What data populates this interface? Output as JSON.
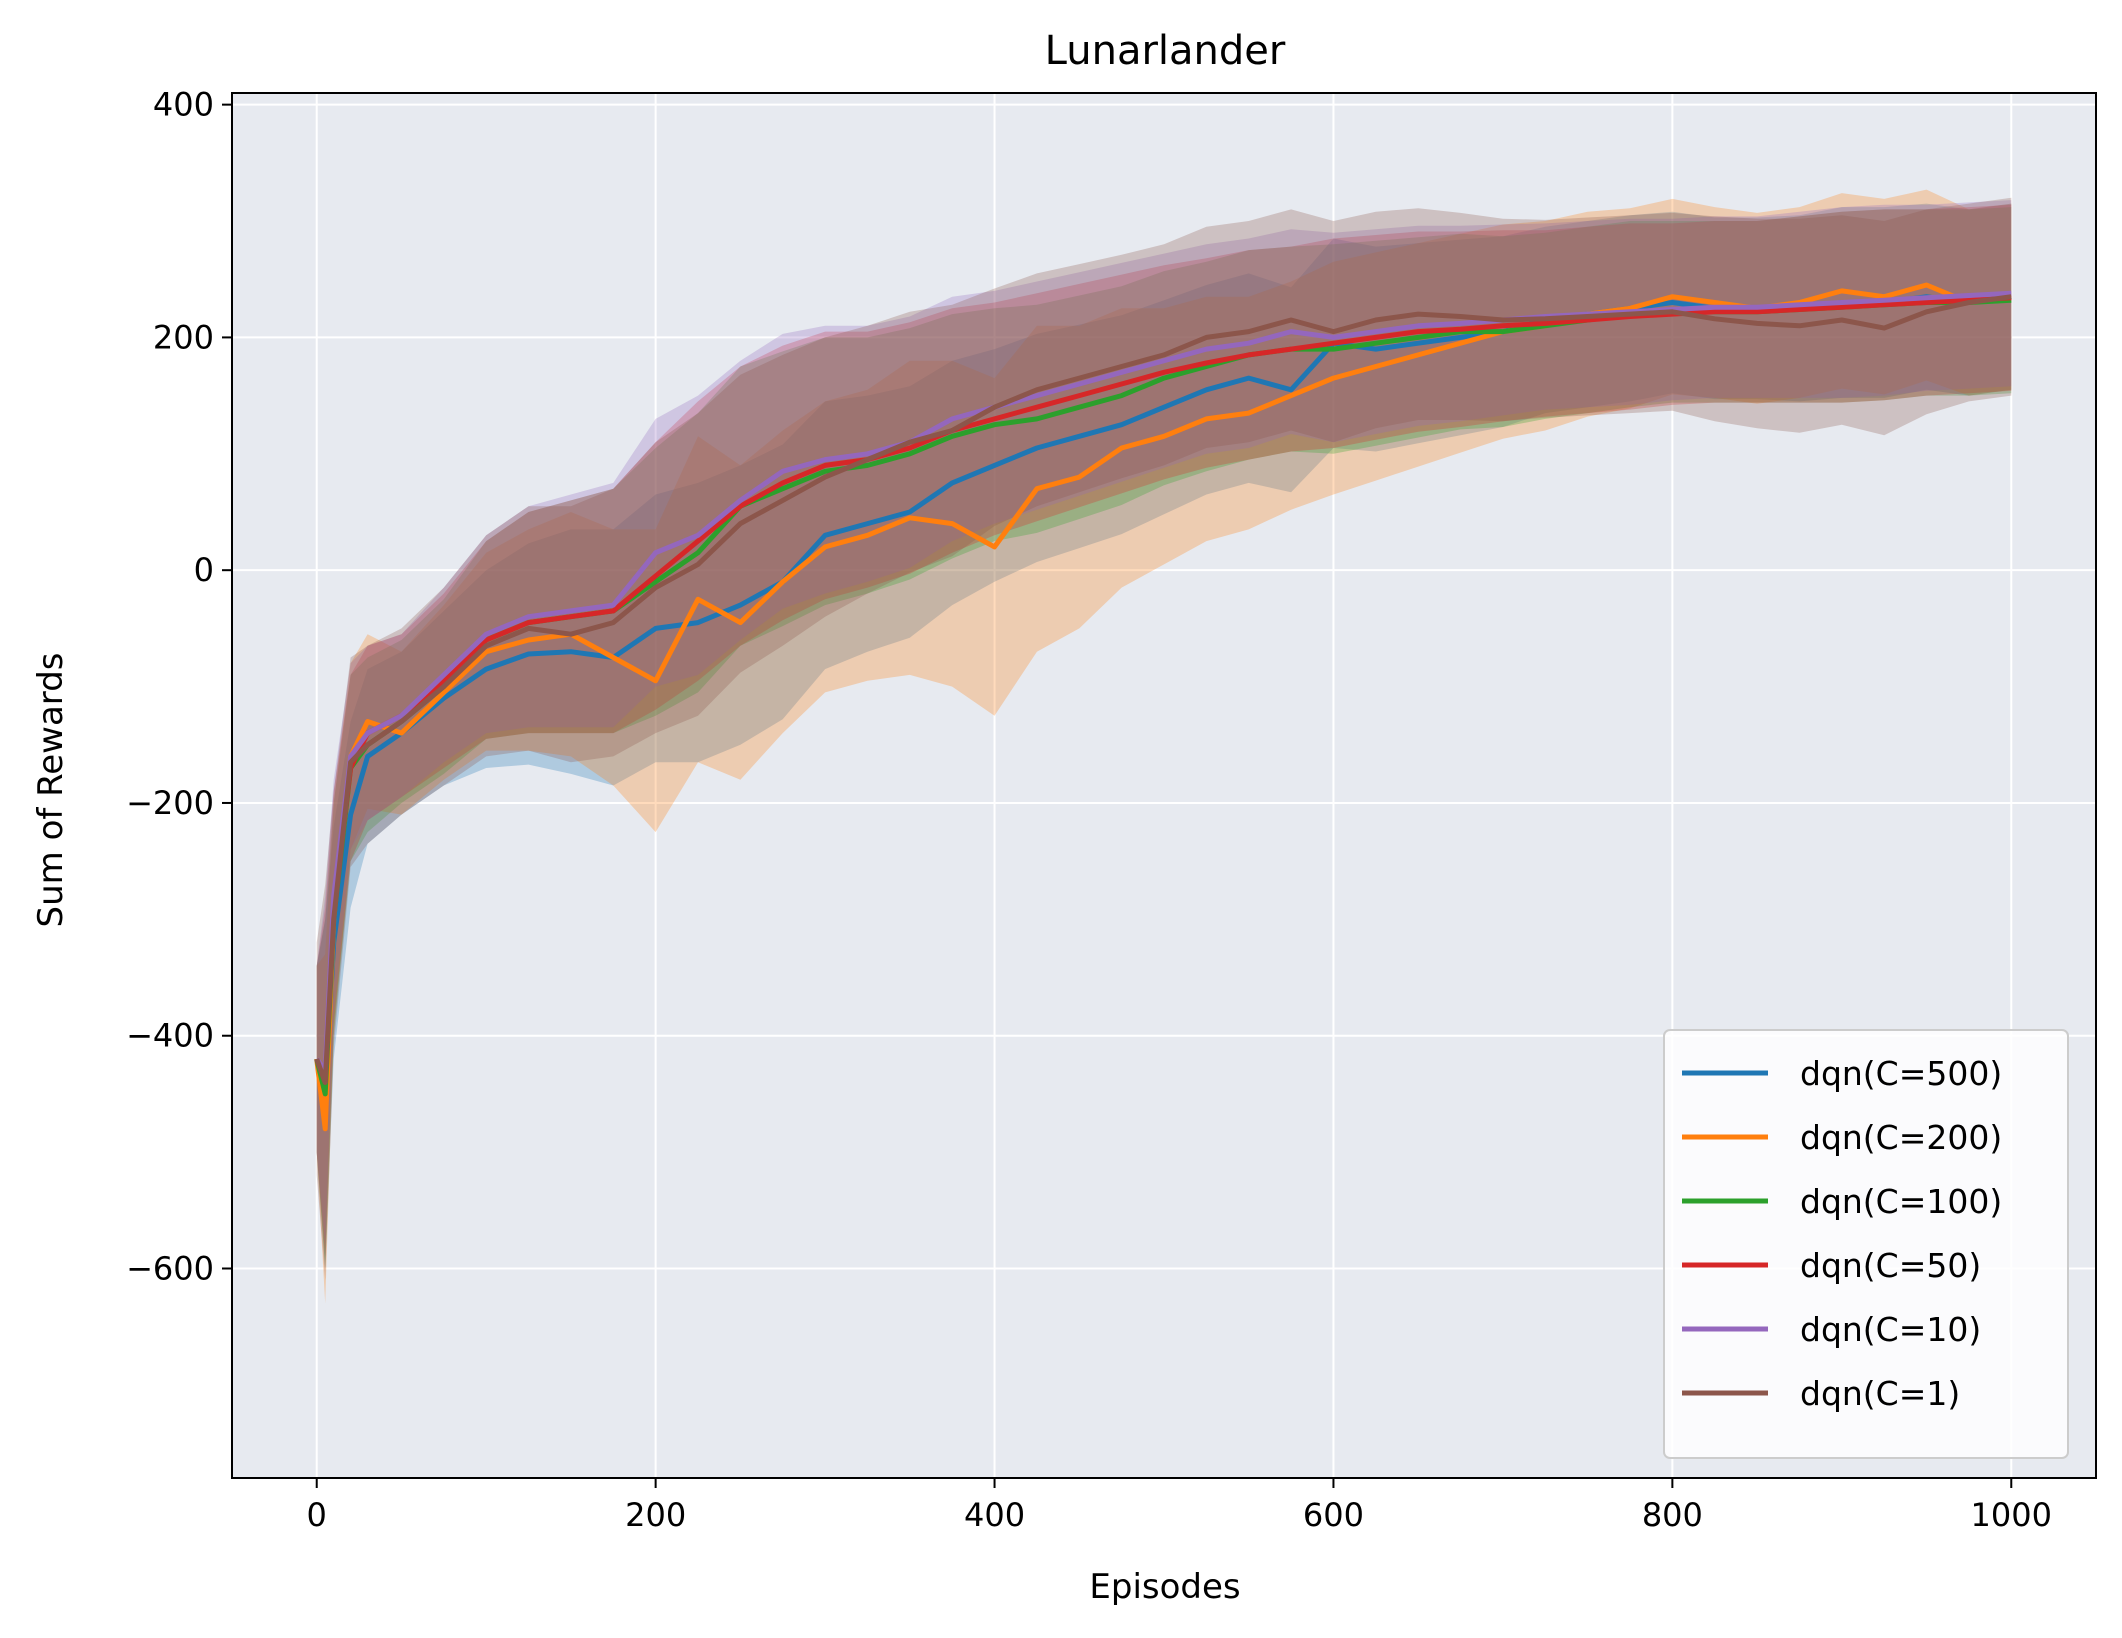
{
  "chart_data": {
    "type": "line",
    "title": "Lunarlander",
    "xlabel": "Episodes",
    "ylabel": "Sum of Rewards",
    "xlim": [
      -50,
      1050
    ],
    "ylim": [
      -780,
      410
    ],
    "xticks": [
      0,
      200,
      400,
      600,
      800,
      1000
    ],
    "yticks": [
      -600,
      -400,
      -200,
      0,
      200,
      400
    ],
    "xtick_labels": [
      "0",
      "200",
      "400",
      "600",
      "800",
      "1000"
    ],
    "ytick_labels": [
      "−600",
      "−400",
      "−200",
      "0",
      "200",
      "400"
    ],
    "grid": true,
    "background": "#e7eaf0",
    "legend_position": "lower-right",
    "shaded_band": "mean ± spread per series (alpha fill)",
    "x": [
      0,
      5,
      10,
      20,
      30,
      50,
      75,
      100,
      125,
      150,
      175,
      200,
      225,
      250,
      275,
      300,
      325,
      350,
      375,
      400,
      425,
      450,
      475,
      500,
      525,
      550,
      575,
      600,
      625,
      650,
      675,
      700,
      725,
      750,
      775,
      800,
      825,
      850,
      875,
      900,
      925,
      950,
      975,
      1000
    ],
    "series": [
      {
        "name": "dqn(C=500)",
        "color": "#1f77b4",
        "values": [
          -420,
          -450,
          -320,
          -210,
          -160,
          -140,
          -110,
          -85,
          -72,
          -70,
          -75,
          -50,
          -45,
          -30,
          -10,
          30,
          40,
          50,
          75,
          90,
          105,
          115,
          125,
          140,
          155,
          165,
          155,
          195,
          190,
          195,
          200,
          205,
          215,
          220,
          225,
          230,
          225,
          225,
          225,
          230,
          230,
          235,
          230,
          235
        ],
        "spread": [
          80,
          150,
          100,
          80,
          75,
          70,
          75,
          85,
          95,
          105,
          110,
          115,
          120,
          120,
          118,
          115,
          110,
          108,
          105,
          100,
          98,
          96,
          94,
          92,
          90,
          90,
          88,
          90,
          88,
          86,
          84,
          82,
          80,
          80,
          80,
          78,
          78,
          78,
          80,
          82,
          82,
          80,
          80,
          80
        ]
      },
      {
        "name": "dqn(C=200)",
        "color": "#ff7f0e",
        "values": [
          -420,
          -480,
          -300,
          -160,
          -130,
          -140,
          -105,
          -70,
          -60,
          -55,
          -75,
          -95,
          -25,
          -45,
          -10,
          20,
          30,
          45,
          40,
          20,
          70,
          80,
          105,
          115,
          130,
          135,
          150,
          165,
          175,
          185,
          195,
          205,
          210,
          220,
          225,
          235,
          230,
          225,
          230,
          240,
          235,
          245,
          230,
          235
        ],
        "spread": [
          80,
          150,
          100,
          80,
          75,
          70,
          75,
          85,
          95,
          105,
          110,
          130,
          140,
          135,
          130,
          125,
          125,
          135,
          140,
          145,
          140,
          130,
          120,
          110,
          105,
          100,
          98,
          100,
          98,
          96,
          94,
          92,
          90,
          88,
          86,
          84,
          82,
          82,
          82,
          84,
          84,
          82,
          80,
          80
        ]
      },
      {
        "name": "dqn(C=100)",
        "color": "#2ca02c",
        "values": [
          -420,
          -450,
          -300,
          -170,
          -150,
          -130,
          -100,
          -60,
          -45,
          -40,
          -35,
          -10,
          15,
          55,
          70,
          85,
          90,
          100,
          115,
          125,
          130,
          140,
          150,
          165,
          175,
          185,
          190,
          190,
          195,
          200,
          205,
          205,
          210,
          215,
          220,
          222,
          222,
          222,
          224,
          226,
          228,
          230,
          230,
          232
        ],
        "spread": [
          80,
          150,
          100,
          80,
          75,
          70,
          75,
          85,
          95,
          100,
          105,
          115,
          120,
          120,
          118,
          115,
          110,
          108,
          105,
          100,
          98,
          96,
          94,
          92,
          90,
          90,
          88,
          90,
          88,
          86,
          84,
          82,
          80,
          80,
          80,
          78,
          78,
          78,
          80,
          82,
          82,
          80,
          80,
          80
        ]
      },
      {
        "name": "dqn(C=50)",
        "color": "#d62728",
        "values": [
          -420,
          -440,
          -290,
          -170,
          -140,
          -125,
          -95,
          -60,
          -45,
          -40,
          -35,
          -5,
          25,
          55,
          75,
          90,
          95,
          105,
          120,
          130,
          140,
          150,
          160,
          170,
          178,
          185,
          190,
          195,
          200,
          205,
          207,
          210,
          212,
          215,
          218,
          220,
          222,
          222,
          224,
          226,
          228,
          230,
          232,
          234
        ],
        "spread": [
          80,
          150,
          100,
          80,
          75,
          70,
          75,
          85,
          95,
          100,
          105,
          115,
          120,
          120,
          118,
          115,
          110,
          108,
          105,
          100,
          98,
          96,
          94,
          92,
          90,
          90,
          88,
          90,
          88,
          86,
          84,
          82,
          80,
          80,
          80,
          78,
          78,
          78,
          80,
          82,
          82,
          80,
          80,
          80
        ]
      },
      {
        "name": "dqn(C=10)",
        "color": "#9467bd",
        "values": [
          -420,
          -430,
          -280,
          -160,
          -140,
          -125,
          -90,
          -55,
          -40,
          -35,
          -30,
          15,
          30,
          60,
          85,
          95,
          100,
          110,
          130,
          140,
          150,
          160,
          170,
          180,
          190,
          195,
          205,
          200,
          205,
          210,
          212,
          215,
          218,
          220,
          222,
          224,
          226,
          226,
          228,
          230,
          232,
          234,
          236,
          238
        ],
        "spread": [
          80,
          150,
          100,
          80,
          75,
          70,
          75,
          85,
          95,
          100,
          105,
          115,
          120,
          120,
          118,
          115,
          110,
          108,
          105,
          100,
          98,
          96,
          94,
          92,
          90,
          90,
          88,
          90,
          88,
          86,
          84,
          82,
          80,
          80,
          80,
          78,
          78,
          78,
          80,
          82,
          82,
          80,
          80,
          80
        ]
      },
      {
        "name": "dqn(C=1)",
        "color": "#8c564b",
        "values": [
          -420,
          -440,
          -300,
          -165,
          -150,
          -130,
          -100,
          -65,
          -50,
          -55,
          -45,
          -15,
          5,
          40,
          60,
          80,
          95,
          110,
          120,
          140,
          155,
          165,
          175,
          185,
          200,
          205,
          215,
          205,
          215,
          220,
          218,
          215,
          216,
          218,
          220,
          222,
          216,
          212,
          210,
          215,
          208,
          222,
          230,
          235
        ],
        "spread": [
          100,
          170,
          110,
          90,
          85,
          80,
          85,
          95,
          105,
          110,
          115,
          125,
          130,
          128,
          125,
          120,
          115,
          112,
          108,
          102,
          100,
          98,
          96,
          95,
          95,
          95,
          95,
          95,
          93,
          91,
          89,
          87,
          85,
          85,
          85,
          85,
          88,
          90,
          92,
          90,
          92,
          88,
          85,
          85
        ]
      }
    ]
  }
}
